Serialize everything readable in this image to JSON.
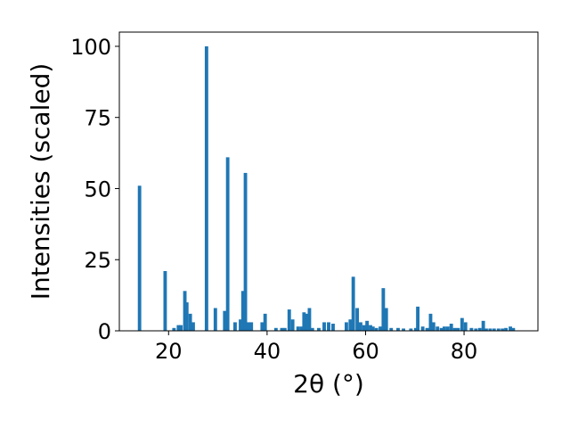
{
  "chart_data": {
    "type": "bar",
    "xlabel": "2θ (°)",
    "ylabel": "Intensities (scaled)",
    "xlim": [
      10,
      95
    ],
    "ylim": [
      0,
      105
    ],
    "xticks": [
      "20",
      "40",
      "60",
      "80"
    ],
    "yticks": [
      "0",
      "25",
      "50",
      "75",
      "100"
    ],
    "bar_color": "#1f77b4",
    "bar_width": 0.7,
    "x": [
      14.1,
      19.3,
      21.1,
      22.0,
      22.5,
      23.3,
      23.7,
      24.4,
      25.0,
      27.7,
      29.5,
      31.4,
      32.0,
      33.5,
      34.6,
      35.1,
      35.6,
      36.2,
      36.8,
      39.0,
      39.6,
      41.8,
      43.0,
      43.6,
      44.5,
      45.2,
      46.3,
      47.0,
      47.5,
      48.1,
      48.6,
      49.2,
      50.5,
      51.6,
      52.5,
      53.4,
      56.1,
      56.9,
      57.5,
      58.3,
      59.0,
      59.7,
      60.3,
      61.0,
      61.5,
      62.2,
      63.0,
      63.6,
      64.2,
      65.2,
      66.6,
      67.7,
      69.2,
      70.2,
      70.6,
      71.6,
      72.5,
      73.2,
      73.8,
      74.6,
      75.4,
      76.0,
      76.7,
      77.4,
      78.1,
      78.8,
      79.6,
      80.3,
      81.5,
      82.4,
      83.2,
      83.9,
      84.5,
      85.3,
      86.1,
      87.0,
      87.8,
      88.5,
      89.4,
      90.0
    ],
    "values": [
      51,
      21,
      1,
      2,
      2,
      14,
      10,
      6,
      3,
      100,
      8,
      7,
      61,
      3,
      4,
      14,
      55.5,
      3,
      3,
      3,
      6,
      1,
      1,
      1,
      7.5,
      4,
      1.5,
      1.5,
      6.5,
      6,
      8,
      1,
      1,
      3,
      3,
      2.5,
      3,
      4,
      19,
      8,
      3,
      2,
      3.5,
      2,
      1.5,
      1,
      1.5,
      15,
      8,
      1,
      1,
      0.8,
      0.8,
      1,
      8.5,
      1.5,
      1,
      6,
      3,
      1.5,
      1,
      1.5,
      1.5,
      2.5,
      1,
      1,
      4.5,
      3,
      1,
      0.8,
      1,
      3.5,
      0.8,
      0.8,
      0.8,
      0.8,
      0.8,
      1,
      1.5,
      1
    ]
  }
}
